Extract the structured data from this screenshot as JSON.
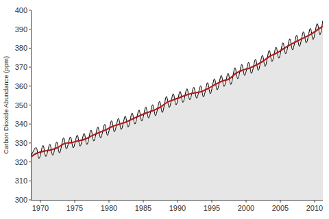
{
  "chart_data": {
    "type": "line",
    "y_label": "Carbon Dioxide Abundance (ppm)",
    "xlim": [
      1968.6,
      2011.2
    ],
    "xticks": [
      1970,
      1975,
      1980,
      1985,
      1990,
      1995,
      2000,
      2005,
      2010
    ],
    "ylim": [
      300,
      400
    ],
    "yticks": [
      300,
      310,
      320,
      330,
      340,
      350,
      360,
      370,
      380,
      390,
      400
    ],
    "grid": false,
    "series": [
      {
        "type": "area",
        "color": "#000000",
        "x": [
          1968.6,
          1969.37,
          1969.8,
          1970.37,
          1970.8,
          1971.37,
          1971.8,
          1972.37,
          1972.8,
          1973.37,
          1973.8,
          1974.37,
          1974.8,
          1975.37,
          1975.8,
          1976.37,
          1976.8,
          1977.37,
          1977.8,
          1978.37,
          1978.8,
          1979.37,
          1979.8,
          1980.37,
          1980.8,
          1981.37,
          1981.8,
          1982.37,
          1982.8,
          1983.37,
          1983.8,
          1984.37,
          1984.8,
          1985.37,
          1985.8,
          1986.37,
          1986.8,
          1987.37,
          1987.8,
          1988.37,
          1988.8,
          1989.37,
          1989.8,
          1990.37,
          1990.8,
          1991.37,
          1991.8,
          1992.37,
          1992.8,
          1993.37,
          1993.8,
          1994.37,
          1994.8,
          1995.37,
          1995.8,
          1996.37,
          1996.8,
          1997.37,
          1997.8,
          1998.37,
          1998.8,
          1999.37,
          1999.8,
          2000.37,
          2000.8,
          2001.37,
          2001.8,
          2002.37,
          2002.8,
          2003.37,
          2003.8,
          2004.37,
          2004.8,
          2005.37,
          2005.8,
          2006.37,
          2006.8,
          2007.37,
          2007.8,
          2008.37,
          2008.8,
          2009.37,
          2009.8,
          2010.37,
          2010.8,
          2011.2
        ],
        "values": [
          323.0,
          327.6,
          321.8,
          328.7,
          322.9,
          329.3,
          323.5,
          330.5,
          324.7,
          332.7,
          326.9,
          333.2,
          327.4,
          334.1,
          328.3,
          335.0,
          329.2,
          336.8,
          331.0,
          338.4,
          332.6,
          339.8,
          334.0,
          341.7,
          335.9,
          342.9,
          337.1,
          344.1,
          338.3,
          345.8,
          340.0,
          347.4,
          341.6,
          348.9,
          343.1,
          350.2,
          344.4,
          351.9,
          346.1,
          354.5,
          348.7,
          355.9,
          350.1,
          357.2,
          351.4,
          358.6,
          352.8,
          359.4,
          353.6,
          360.1,
          354.3,
          361.8,
          356.0,
          363.8,
          358.0,
          365.6,
          359.8,
          366.7,
          360.9,
          369.7,
          363.9,
          371.4,
          365.6,
          372.5,
          366.7,
          374.1,
          368.3,
          376.2,
          370.4,
          378.8,
          373.0,
          380.5,
          374.7,
          382.8,
          377.0,
          384.9,
          379.1,
          386.8,
          381.0,
          388.6,
          382.8,
          390.4,
          384.6,
          392.9,
          387.1,
          394.5
        ]
      },
      {
        "type": "line",
        "color": "#b01c1c",
        "x": [
          1968.6,
          1969.5,
          1970.5,
          1971.5,
          1972.5,
          1973.5,
          1974.5,
          1975.5,
          1976.5,
          1977.5,
          1978.5,
          1979.5,
          1980.5,
          1981.5,
          1982.5,
          1983.5,
          1984.5,
          1985.5,
          1986.5,
          1987.5,
          1988.5,
          1989.5,
          1990.5,
          1991.5,
          1992.5,
          1993.5,
          1994.5,
          1995.5,
          1996.5,
          1997.5,
          1998.5,
          1999.5,
          2000.5,
          2001.5,
          2002.5,
          2003.5,
          2004.5,
          2005.5,
          2006.5,
          2007.5,
          2008.5,
          2009.5,
          2010.5,
          2011.2
        ],
        "values": [
          322.7,
          324.6,
          325.7,
          326.3,
          327.5,
          329.7,
          330.2,
          331.1,
          332.0,
          333.8,
          335.4,
          336.8,
          338.7,
          339.9,
          341.1,
          342.8,
          344.4,
          345.9,
          347.2,
          348.9,
          351.5,
          352.9,
          354.2,
          355.6,
          356.4,
          357.1,
          358.8,
          360.8,
          362.6,
          363.7,
          366.7,
          368.4,
          369.5,
          371.1,
          373.2,
          375.8,
          377.5,
          379.8,
          381.9,
          383.8,
          385.6,
          387.4,
          389.9,
          391.5
        ]
      }
    ]
  }
}
